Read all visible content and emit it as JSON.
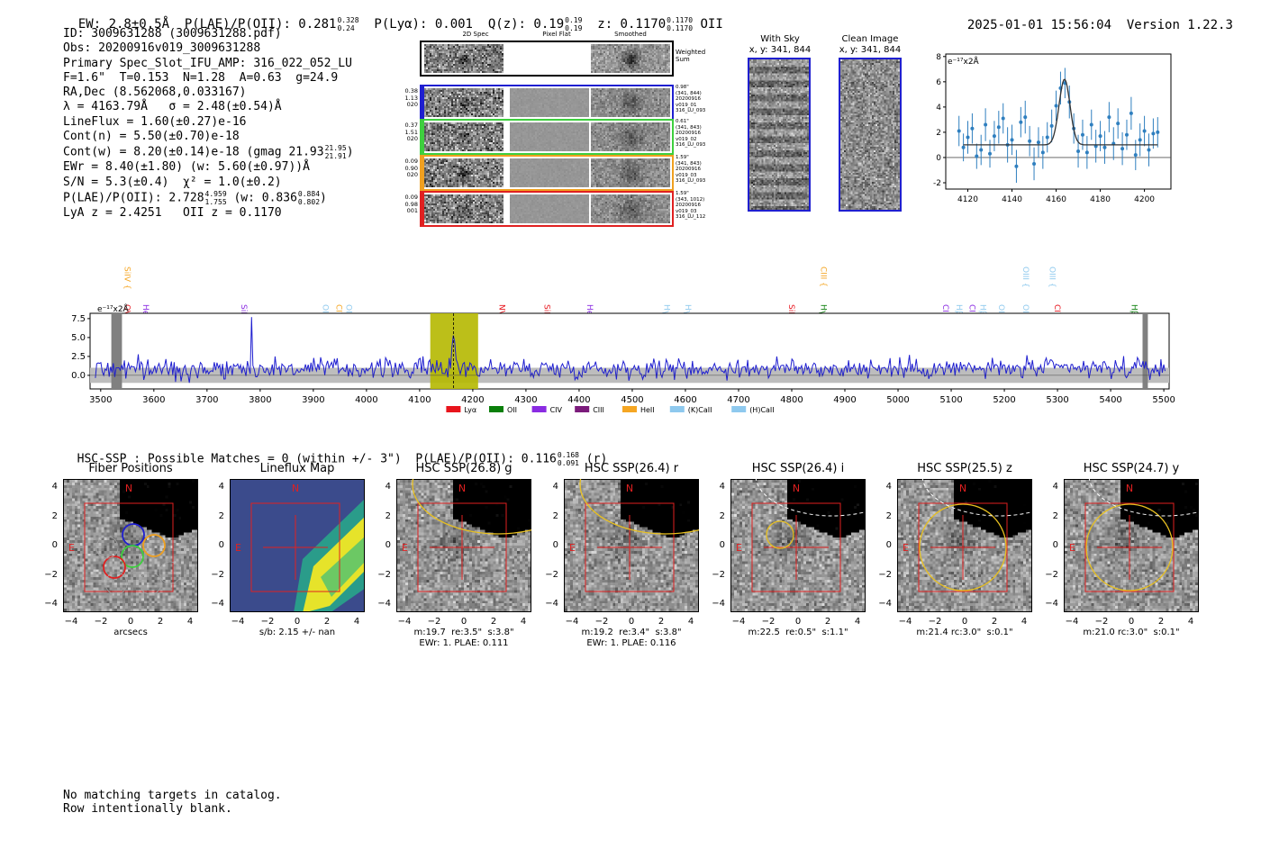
{
  "header": {
    "ew": "EW: 2.8±0.5Å",
    "plae_label": "P(LAE)/P(OII): 0.281",
    "plae_hi": "0.328",
    "plae_lo": "0.24",
    "plya": "P(Lyα): 0.001",
    "qz_label": "Q(z): 0.19",
    "qz_hi": "0.19",
    "qz_lo": "0.19",
    "z_label": "z: 0.1170",
    "z_hi": "0.1170",
    "z_lo": "0.1170",
    "z_line": "OII",
    "datetime": "2025-01-01 15:56:04",
    "version": "Version 1.22.3"
  },
  "info": {
    "id": "ID: 3009631288 (3009631288.pdf)",
    "obs": "Obs: 20200916v019_3009631288",
    "primary": "Primary Spec_Slot_IFU_AMP: 316_022_052_LU",
    "params": "F=1.6\"  T=0.153  N=1.28  A=0.63  g=24.9",
    "radec": "RA,Dec (8.562068,0.033167)",
    "lambda": "λ = 4163.79Å   σ = 2.48(±0.54)Å",
    "lineflux": "LineFlux = 1.60(±0.27)e-16",
    "contn": "Cont(n) = 5.50(±0.70)e-18",
    "contw": "Cont(w) = 8.20(±0.14)e-18 (gmag 21.93",
    "contw_hi": "21.95",
    "contw_lo": "21.91",
    "ewr": "EWr = 8.40(±1.80) (w: 5.60(±0.97))Å",
    "sn": "S/N = 5.3(±0.4)  χ² = 1.0(±0.2)",
    "plae": "P(LAE)/P(OII): 2.728",
    "plae_hi": "4.959",
    "plae_lo": "1.755",
    "plae_w": "(w: 0.836",
    "plae_w_hi": "0.884",
    "plae_w_lo": "0.802",
    "lya_oii": "LyA z = 2.4251   OII z = 0.1170"
  },
  "cutouts": {
    "col_2d": "2D Spec",
    "col_flat": "Pixel Flat",
    "col_smooth": "Smoothed",
    "weighted": "Weighted\nSum",
    "rows": [
      {
        "left": "0.38\n1.13\n020",
        "right": "0.98\"\n(341, 844)\n20200916\nv019_01\n316_LU_093",
        "color": "#1f1fd0"
      },
      {
        "left": "0.37\n1.51\n020",
        "right": "0.61\"\n(341, 843)\n20200916\nv019_02\n316_LU_093",
        "color": "#3ecf3e"
      },
      {
        "left": "0.09\n0.90\n020",
        "right": "1.59\"\n(341, 843)\n20200916\nv019_03\n316_LU_093",
        "color": "#f0a020"
      },
      {
        "left": "0.09\n0.98\n001",
        "right": "1.59\"\n(343, 1012)\n20200916\nv019_03\n316_LU_112",
        "color": "#e02020"
      }
    ]
  },
  "sky": {
    "with_sky_title": "With Sky",
    "with_sky_xy": "x, y: 341, 844",
    "clean_title": "Clean Image",
    "clean_xy": "x, y: 341, 844"
  },
  "chart_data": [
    {
      "type": "line",
      "title": "",
      "ylabel": "e⁻¹⁷x2Å",
      "xlim": [
        4110,
        4212
      ],
      "ylim": [
        -2.5,
        8.2
      ],
      "xticks": [
        4120,
        4140,
        4160,
        4180,
        4200
      ],
      "yticks": [
        -2,
        0,
        2,
        4,
        6,
        8
      ],
      "model": {
        "continuum": 1.0,
        "peak_center": 4163.8,
        "peak_amp": 5.2,
        "sigma": 2.48
      },
      "points": [
        {
          "x": 4116,
          "y": 2.1,
          "e": 1.2
        },
        {
          "x": 4118,
          "y": 0.8,
          "e": 1.1
        },
        {
          "x": 4120,
          "y": 1.6,
          "e": 1.3
        },
        {
          "x": 4122,
          "y": 2.3,
          "e": 1.2
        },
        {
          "x": 4124,
          "y": 0.1,
          "e": 1.0
        },
        {
          "x": 4126,
          "y": 0.6,
          "e": 1.2
        },
        {
          "x": 4128,
          "y": 2.6,
          "e": 1.3
        },
        {
          "x": 4130,
          "y": 0.3,
          "e": 1.1
        },
        {
          "x": 4132,
          "y": 1.7,
          "e": 1.2
        },
        {
          "x": 4134,
          "y": 2.4,
          "e": 1.3
        },
        {
          "x": 4136,
          "y": 3.1,
          "e": 1.2
        },
        {
          "x": 4138,
          "y": 1.0,
          "e": 1.4
        },
        {
          "x": 4140,
          "y": 1.4,
          "e": 1.2
        },
        {
          "x": 4142,
          "y": -0.7,
          "e": 1.3
        },
        {
          "x": 4144,
          "y": 2.8,
          "e": 1.2
        },
        {
          "x": 4146,
          "y": 3.2,
          "e": 1.3
        },
        {
          "x": 4148,
          "y": 1.3,
          "e": 1.2
        },
        {
          "x": 4150,
          "y": -0.5,
          "e": 1.3
        },
        {
          "x": 4152,
          "y": 1.2,
          "e": 1.2
        },
        {
          "x": 4154,
          "y": 0.4,
          "e": 1.3
        },
        {
          "x": 4156,
          "y": 1.6,
          "e": 1.2
        },
        {
          "x": 4158,
          "y": 2.5,
          "e": 1.3
        },
        {
          "x": 4160,
          "y": 4.1,
          "e": 1.2
        },
        {
          "x": 4162,
          "y": 5.5,
          "e": 1.3
        },
        {
          "x": 4164,
          "y": 5.9,
          "e": 1.2
        },
        {
          "x": 4166,
          "y": 4.4,
          "e": 1.3
        },
        {
          "x": 4168,
          "y": 2.3,
          "e": 1.2
        },
        {
          "x": 4170,
          "y": 0.5,
          "e": 1.3
        },
        {
          "x": 4172,
          "y": 1.8,
          "e": 1.2
        },
        {
          "x": 4174,
          "y": 0.4,
          "e": 1.3
        },
        {
          "x": 4176,
          "y": 2.6,
          "e": 1.2
        },
        {
          "x": 4178,
          "y": 0.9,
          "e": 1.3
        },
        {
          "x": 4180,
          "y": 1.7,
          "e": 1.2
        },
        {
          "x": 4182,
          "y": 0.8,
          "e": 1.3
        },
        {
          "x": 4184,
          "y": 3.2,
          "e": 1.2
        },
        {
          "x": 4186,
          "y": 1.1,
          "e": 1.3
        },
        {
          "x": 4188,
          "y": 2.7,
          "e": 1.2
        },
        {
          "x": 4190,
          "y": 0.7,
          "e": 1.3
        },
        {
          "x": 4192,
          "y": 1.8,
          "e": 1.2
        },
        {
          "x": 4194,
          "y": 3.5,
          "e": 1.3
        },
        {
          "x": 4196,
          "y": 0.2,
          "e": 1.2
        },
        {
          "x": 4198,
          "y": 1.4,
          "e": 1.3
        },
        {
          "x": 4200,
          "y": 2.1,
          "e": 1.2
        },
        {
          "x": 4202,
          "y": 0.6,
          "e": 1.3
        },
        {
          "x": 4204,
          "y": 1.9,
          "e": 1.2
        },
        {
          "x": 4206,
          "y": 2.0,
          "e": 1.2
        }
      ]
    },
    {
      "type": "line",
      "title": "",
      "ylabel": "e⁻¹⁷x2Å",
      "xlim": [
        3480,
        5510
      ],
      "ylim": [
        -1.8,
        8.2
      ],
      "xticks": [
        3500,
        3600,
        3700,
        3800,
        3900,
        4000,
        4100,
        4200,
        4300,
        4400,
        4500,
        4600,
        4700,
        4800,
        4900,
        5000,
        5100,
        5200,
        5300,
        5400,
        5500
      ],
      "yticks": [
        0.0,
        2.5,
        5.0,
        7.5
      ],
      "highlight_range": [
        4120,
        4210
      ],
      "emission_center": 4163.8,
      "masked_ranges": [
        [
          3520,
          3540
        ],
        [
          5460,
          5470
        ]
      ],
      "legend": [
        {
          "label": "Lyα",
          "color": "#e8141c"
        },
        {
          "label": "OII",
          "color": "#0a7f0a"
        },
        {
          "label": "CIV",
          "color": "#8a2be2"
        },
        {
          "label": "CIII",
          "color": "#7b1b7b"
        },
        {
          "label": "HeII",
          "color": "#f5a623"
        },
        {
          "label": "(K)CaII",
          "color": "#8ec9ee"
        },
        {
          "label": "(H)CaII",
          "color": "#8ec9ee"
        }
      ],
      "line_labels": [
        {
          "name": "SiIV",
          "x": 3540,
          "row": 0,
          "color": "#f5a623"
        },
        {
          "name": "OVI",
          "x": 3540,
          "row": 1,
          "color": "#e8141c"
        },
        {
          "name": "HeII",
          "x": 3575,
          "row": 1,
          "color": "#8a2be2"
        },
        {
          "name": "SiIV",
          "x": 3760,
          "row": 1,
          "color": "#8a2be2"
        },
        {
          "name": "OII",
          "x": 3913,
          "row": 1,
          "color": "#8ec9ee"
        },
        {
          "name": "CIV",
          "x": 3938,
          "row": 1,
          "color": "#f5a623"
        },
        {
          "name": "OII",
          "x": 3957,
          "row": 1,
          "color": "#8ec9ee"
        },
        {
          "name": "NV",
          "x": 4245,
          "row": 1,
          "color": "#e8141c"
        },
        {
          "name": "SiII",
          "x": 4330,
          "row": 1,
          "color": "#e8141c"
        },
        {
          "name": "HeII",
          "x": 4410,
          "row": 1,
          "color": "#8a2be2"
        },
        {
          "name": "Hγ",
          "x": 4555,
          "row": 1,
          "color": "#8ec9ee"
        },
        {
          "name": "Hγ",
          "x": 4595,
          "row": 1,
          "color": "#8ec9ee"
        },
        {
          "name": "SiIV",
          "x": 4790,
          "row": 1,
          "color": "#e8141c"
        },
        {
          "name": "CIII",
          "x": 4850,
          "row": 0,
          "color": "#f5a623"
        },
        {
          "name": "Hγ",
          "x": 4850,
          "row": 1,
          "color": "#0a7f0a"
        },
        {
          "name": "CII",
          "x": 5080,
          "row": 1,
          "color": "#8a2be2"
        },
        {
          "name": "Hβ",
          "x": 5105,
          "row": 1,
          "color": "#8ec9ee"
        },
        {
          "name": "CIII",
          "x": 5130,
          "row": 1,
          "color": "#8a2be2"
        },
        {
          "name": "Hβ",
          "x": 5150,
          "row": 1,
          "color": "#8ec9ee"
        },
        {
          "name": "OIII",
          "x": 5185,
          "row": 1,
          "color": "#8ec9ee"
        },
        {
          "name": "OIII",
          "x": 5230,
          "row": 0,
          "color": "#8ec9ee"
        },
        {
          "name": "OIII",
          "x": 5230,
          "row": 1,
          "color": "#8ec9ee"
        },
        {
          "name": "OIII",
          "x": 5280,
          "row": 0,
          "color": "#8ec9ee"
        },
        {
          "name": "CIV",
          "x": 5290,
          "row": 1,
          "color": "#e8141c"
        },
        {
          "name": "Hβ",
          "x": 5435,
          "row": 1,
          "color": "#0a7f0a"
        }
      ]
    }
  ],
  "hsc": {
    "summary": "HSC-SSP : Possible Matches = 0 (within +/- 3\")  P(LAE)/P(OII): 0.116",
    "summary_hi": "0.168",
    "summary_lo": "0.091",
    "summary_band": "(r)",
    "north": "N",
    "east": "E",
    "yticks": [
      "4",
      "2",
      "0",
      "−2",
      "−4"
    ],
    "xticks": [
      "−4",
      "−2",
      "0",
      "2",
      "4"
    ],
    "panels": [
      {
        "title": "Fiber Positions",
        "cap1": "arcsecs",
        "cap2": ""
      },
      {
        "title": "Lineflux Map",
        "cap1": "s/b: 2.15 +/- nan",
        "cap2": ""
      },
      {
        "title": "HSC SSP(26.8) g",
        "cap1": "m:19.7  re:3.5\"  s:3.8\"",
        "cap2": "EWr: 1. PLAE: 0.111"
      },
      {
        "title": "HSC SSP(26.4) r",
        "cap1": "m:19.2  re:3.4\"  s:3.8\"",
        "cap2": "EWr: 1. PLAE: 0.116"
      },
      {
        "title": "HSC SSP(26.4) i",
        "cap1": "m:22.5  re:0.5\"  s:1.1\"",
        "cap2": ""
      },
      {
        "title": "HSC SSP(25.5) z",
        "cap1": "m:21.4 rc:3.0\"  s:0.1\"",
        "cap2": ""
      },
      {
        "title": "HSC SSP(24.7) y",
        "cap1": "m:21.0 rc:3.0\"  s:0.1\"",
        "cap2": ""
      }
    ]
  },
  "footer": {
    "line1": "No matching targets in catalog.",
    "line2": "Row intentionally blank."
  }
}
